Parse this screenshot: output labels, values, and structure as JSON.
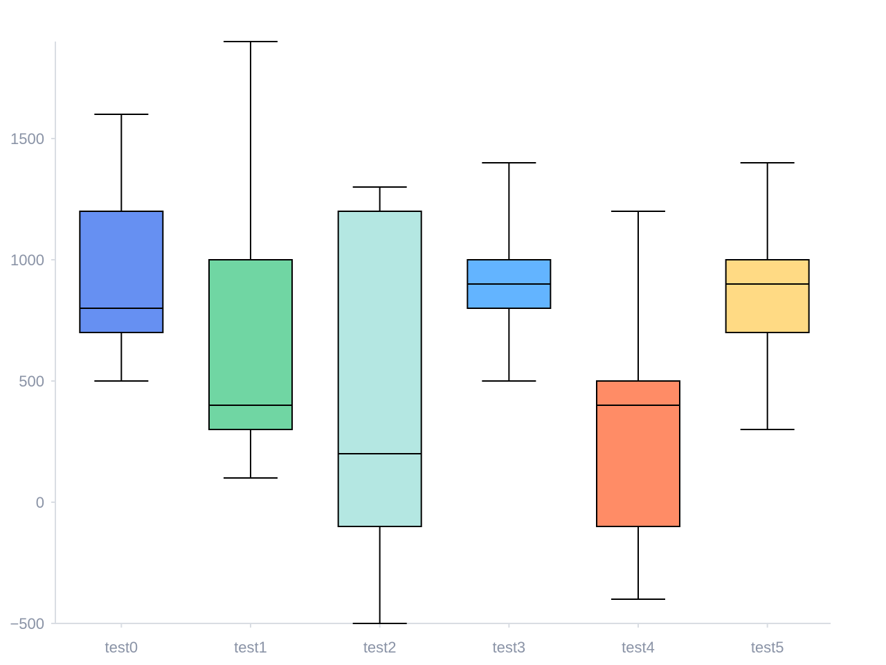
{
  "chart_data": {
    "type": "box",
    "categories": [
      "test0",
      "test1",
      "test2",
      "test3",
      "test4",
      "test5"
    ],
    "boxes": [
      {
        "category": "test0",
        "min": 500,
        "q1": 700,
        "median": 800,
        "q3": 1200,
        "max": 1600,
        "color": "#6690F2"
      },
      {
        "category": "test1",
        "min": 100,
        "q1": 300,
        "median": 400,
        "q3": 1000,
        "max": 1900,
        "color": "#70D6A3"
      },
      {
        "category": "test2",
        "min": -500,
        "q1": -100,
        "median": 200,
        "q3": 1200,
        "max": 1300,
        "color": "#B4E7E2"
      },
      {
        "category": "test3",
        "min": 500,
        "q1": 800,
        "median": 900,
        "q3": 1000,
        "max": 1400,
        "color": "#63B4FF"
      },
      {
        "category": "test4",
        "min": -400,
        "q1": -100,
        "median": 400,
        "q3": 500,
        "max": 1200,
        "color": "#FF8C66"
      },
      {
        "category": "test5",
        "min": 300,
        "q1": 700,
        "median": 900,
        "q3": 1000,
        "max": 1400,
        "color": "#FFDA84"
      }
    ],
    "y_ticks": [
      -500,
      0,
      500,
      1000,
      1500
    ],
    "y_tick_labels": [
      "−500",
      "0",
      "500",
      "1000",
      "1500"
    ],
    "ylim": [
      -500,
      1900
    ],
    "grid": false,
    "legend": "none"
  }
}
